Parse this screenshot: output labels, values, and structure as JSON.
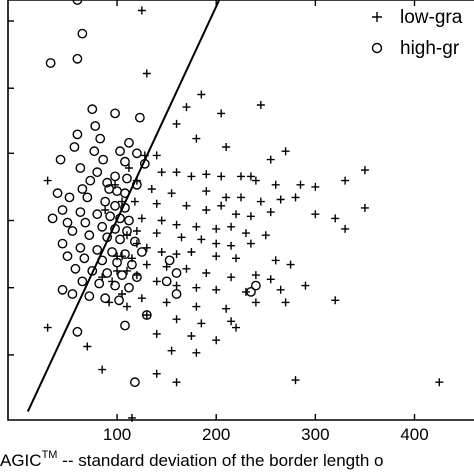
{
  "chart_data": {
    "type": "scatter",
    "title": "",
    "xlabel": "AGIC™ -- standard deviation of the border length o",
    "xlabel_main": "AGIC",
    "xlabel_sup": "TM",
    "xlabel_rest": " -- standard deviation of the border length o",
    "ylabel": "",
    "xlim": [
      -10,
      460
    ],
    "ylim": [
      0,
      1
    ],
    "x_ticks": [
      100,
      200,
      300,
      400
    ],
    "x_tick_labels": [
      "100",
      "200",
      "300",
      "400"
    ],
    "grid": false,
    "legend_placement": "top-right",
    "boundary_line": {
      "x": [
        10,
        205
      ],
      "y": [
        0.02,
        1.01
      ]
    },
    "series": [
      {
        "name": "low-gra",
        "marker": "plus",
        "points": [
          [
            125,
            0.975
          ],
          [
            130,
            0.825
          ],
          [
            185,
            0.775
          ],
          [
            205,
            0.73
          ],
          [
            170,
            0.745
          ],
          [
            245,
            0.75
          ],
          [
            160,
            0.705
          ],
          [
            180,
            0.67
          ],
          [
            210,
            0.65
          ],
          [
            270,
            0.64
          ],
          [
            255,
            0.62
          ],
          [
            235,
            0.58
          ],
          [
            145,
            0.59
          ],
          [
            160,
            0.59
          ],
          [
            175,
            0.58
          ],
          [
            190,
            0.585
          ],
          [
            205,
            0.58
          ],
          [
            225,
            0.58
          ],
          [
            240,
            0.57
          ],
          [
            260,
            0.56
          ],
          [
            285,
            0.56
          ],
          [
            300,
            0.555
          ],
          [
            330,
            0.57
          ],
          [
            350,
            0.595
          ],
          [
            30,
            0.57
          ],
          [
            135,
            0.55
          ],
          [
            155,
            0.54
          ],
          [
            190,
            0.545
          ],
          [
            210,
            0.53
          ],
          [
            225,
            0.53
          ],
          [
            245,
            0.52
          ],
          [
            265,
            0.525
          ],
          [
            280,
            0.53
          ],
          [
            140,
            0.515
          ],
          [
            170,
            0.51
          ],
          [
            190,
            0.5
          ],
          [
            205,
            0.51
          ],
          [
            220,
            0.49
          ],
          [
            235,
            0.485
          ],
          [
            255,
            0.495
          ],
          [
            300,
            0.49
          ],
          [
            320,
            0.48
          ],
          [
            330,
            0.455
          ],
          [
            350,
            0.505
          ],
          [
            125,
            0.48
          ],
          [
            145,
            0.475
          ],
          [
            160,
            0.465
          ],
          [
            180,
            0.46
          ],
          [
            200,
            0.455
          ],
          [
            215,
            0.46
          ],
          [
            230,
            0.445
          ],
          [
            250,
            0.44
          ],
          [
            110,
            0.44
          ],
          [
            120,
            0.45
          ],
          [
            140,
            0.445
          ],
          [
            165,
            0.435
          ],
          [
            185,
            0.43
          ],
          [
            200,
            0.42
          ],
          [
            215,
            0.415
          ],
          [
            235,
            0.42
          ],
          [
            120,
            0.42
          ],
          [
            130,
            0.41
          ],
          [
            145,
            0.4
          ],
          [
            160,
            0.395
          ],
          [
            175,
            0.4
          ],
          [
            200,
            0.39
          ],
          [
            220,
            0.385
          ],
          [
            260,
            0.38
          ],
          [
            275,
            0.37
          ],
          [
            105,
            0.39
          ],
          [
            115,
            0.385
          ],
          [
            130,
            0.37
          ],
          [
            150,
            0.365
          ],
          [
            170,
            0.36
          ],
          [
            190,
            0.35
          ],
          [
            215,
            0.34
          ],
          [
            240,
            0.345
          ],
          [
            255,
            0.335
          ],
          [
            100,
            0.355
          ],
          [
            120,
            0.345
          ],
          [
            140,
            0.33
          ],
          [
            160,
            0.32
          ],
          [
            180,
            0.315
          ],
          [
            200,
            0.31
          ],
          [
            230,
            0.305
          ],
          [
            265,
            0.31
          ],
          [
            290,
            0.32
          ],
          [
            320,
            0.285
          ],
          [
            105,
            0.3
          ],
          [
            125,
            0.29
          ],
          [
            150,
            0.28
          ],
          [
            180,
            0.27
          ],
          [
            210,
            0.265
          ],
          [
            240,
            0.28
          ],
          [
            270,
            0.28
          ],
          [
            130,
            0.25
          ],
          [
            160,
            0.24
          ],
          [
            185,
            0.23
          ],
          [
            215,
            0.235
          ],
          [
            140,
            0.205
          ],
          [
            175,
            0.2
          ],
          [
            200,
            0.19
          ],
          [
            155,
            0.165
          ],
          [
            180,
            0.16
          ],
          [
            220,
            0.22
          ],
          [
            30,
            0.22
          ],
          [
            70,
            0.175
          ],
          [
            85,
            0.12
          ],
          [
            140,
            0.11
          ],
          [
            160,
            0.09
          ],
          [
            280,
            0.095
          ],
          [
            425,
            0.09
          ],
          [
            115,
            0.005
          ],
          [
            100,
            0.39
          ],
          [
            110,
            0.355
          ],
          [
            95,
            0.33
          ],
          [
            85,
            0.34
          ],
          [
            92,
            0.28
          ],
          [
            110,
            0.27
          ],
          [
            98,
            0.56
          ],
          [
            105,
            0.52
          ],
          [
            118,
            0.52
          ],
          [
            88,
            0.5
          ],
          [
            128,
            0.63
          ],
          [
            140,
            0.63
          ],
          [
            112,
            0.6
          ],
          [
            120,
            0.57
          ]
        ]
      },
      {
        "name": "high-gr",
        "marker": "circle",
        "points": [
          [
            60,
            1.0
          ],
          [
            65,
            0.92
          ],
          [
            33,
            0.85
          ],
          [
            60,
            0.86
          ],
          [
            75,
            0.74
          ],
          [
            98,
            0.73
          ],
          [
            78,
            0.7
          ],
          [
            123,
            0.72
          ],
          [
            60,
            0.68
          ],
          [
            83,
            0.67
          ],
          [
            112,
            0.66
          ],
          [
            57,
            0.65
          ],
          [
            77,
            0.64
          ],
          [
            103,
            0.64
          ],
          [
            120,
            0.635
          ],
          [
            43,
            0.62
          ],
          [
            86,
            0.62
          ],
          [
            108,
            0.615
          ],
          [
            128,
            0.61
          ],
          [
            63,
            0.6
          ],
          [
            80,
            0.59
          ],
          [
            98,
            0.58
          ],
          [
            110,
            0.575
          ],
          [
            73,
            0.57
          ],
          [
            90,
            0.565
          ],
          [
            120,
            0.56
          ],
          [
            65,
            0.55
          ],
          [
            92,
            0.55
          ],
          [
            100,
            0.545
          ],
          [
            108,
            0.54
          ],
          [
            40,
            0.54
          ],
          [
            52,
            0.53
          ],
          [
            70,
            0.53
          ],
          [
            88,
            0.52
          ],
          [
            98,
            0.51
          ],
          [
            108,
            0.505
          ],
          [
            45,
            0.5
          ],
          [
            63,
            0.495
          ],
          [
            80,
            0.49
          ],
          [
            93,
            0.485
          ],
          [
            103,
            0.48
          ],
          [
            112,
            0.475
          ],
          [
            35,
            0.48
          ],
          [
            50,
            0.47
          ],
          [
            68,
            0.47
          ],
          [
            85,
            0.46
          ],
          [
            98,
            0.455
          ],
          [
            110,
            0.45
          ],
          [
            55,
            0.45
          ],
          [
            72,
            0.44
          ],
          [
            90,
            0.435
          ],
          [
            103,
            0.43
          ],
          [
            118,
            0.425
          ],
          [
            45,
            0.42
          ],
          [
            63,
            0.41
          ],
          [
            80,
            0.405
          ],
          [
            95,
            0.4
          ],
          [
            108,
            0.395
          ],
          [
            50,
            0.39
          ],
          [
            67,
            0.385
          ],
          [
            85,
            0.38
          ],
          [
            100,
            0.375
          ],
          [
            115,
            0.37
          ],
          [
            58,
            0.36
          ],
          [
            75,
            0.355
          ],
          [
            90,
            0.35
          ],
          [
            105,
            0.345
          ],
          [
            120,
            0.34
          ],
          [
            65,
            0.33
          ],
          [
            82,
            0.325
          ],
          [
            98,
            0.32
          ],
          [
            112,
            0.315
          ],
          [
            45,
            0.31
          ],
          [
            55,
            0.3
          ],
          [
            72,
            0.295
          ],
          [
            88,
            0.29
          ],
          [
            102,
            0.285
          ],
          [
            150,
            0.33
          ],
          [
            160,
            0.3
          ],
          [
            235,
            0.305
          ],
          [
            240,
            0.32
          ],
          [
            160,
            0.35
          ],
          [
            153,
            0.38
          ],
          [
            125,
            0.4
          ],
          [
            130,
            0.25
          ],
          [
            108,
            0.225
          ],
          [
            60,
            0.21
          ],
          [
            118,
            0.09
          ]
        ]
      }
    ]
  }
}
